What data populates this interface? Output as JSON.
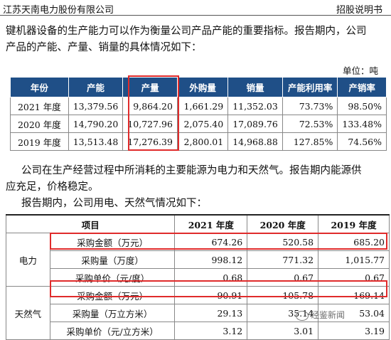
{
  "header": {
    "company": "江苏天南电力股份有限公司",
    "doc": "招股说明书"
  },
  "intro": {
    "line1": "键机器设备的生产能力可以作为衡量公司产品产能的重要指标。报告期内，公司",
    "line2": "产品的产能、产量、销量的具体情况如下："
  },
  "unit_label": "单位：吨",
  "capacity_table": {
    "headers": [
      "年份",
      "产能",
      "产量",
      "外购量",
      "销量",
      "产能利用率",
      "产销率"
    ],
    "rows": [
      [
        "2021 年度",
        "13,379.56",
        "9,864.20",
        "1,661.29",
        "11,352.03",
        "73.73%",
        "98.50%"
      ],
      [
        "2020 年度",
        "14,790.20",
        "10,727.96",
        "2,075.40",
        "17,089.76",
        "72.53%",
        "133.48%"
      ],
      [
        "2019 年度",
        "13,513.48",
        "17,276.39",
        "2,800.01",
        "14,968.88",
        "127.85%",
        "74.56%"
      ]
    ]
  },
  "energy": {
    "line1": "公司在生产经营过程中所消耗的主要能源为电力和天然气。报告期内能源供",
    "line2": "应充足，价格稳定。",
    "line3": "报告期内，公司用电、天然气情况如下："
  },
  "energy_table": {
    "headers": [
      "项目",
      "2021 年度",
      "2020 年度",
      "2019 年度"
    ],
    "electricity": {
      "category": "电力",
      "rows": [
        [
          "采购金额（万元）",
          "674.26",
          "520.58",
          "685.20"
        ],
        [
          "采购量（万度）",
          "998.12",
          "771.32",
          "1,015.77"
        ],
        [
          "采购单价（元/度）",
          "0.68",
          "0.67",
          "0.67"
        ]
      ]
    },
    "gas": {
      "category": "天然气",
      "rows": [
        [
          "采购金额（万元）",
          "90.91",
          "105.78",
          "169.14"
        ],
        [
          "采购量（万立方米）",
          "29.13",
          "35.14",
          "53.04"
        ],
        [
          "采购单价（元/立方米）",
          "3.12",
          "3.01",
          "3.19"
        ]
      ]
    }
  },
  "watermark": "经鉴新闻",
  "colors": {
    "header_bg": "#1f4f87",
    "highlight": "#e02b2b"
  }
}
